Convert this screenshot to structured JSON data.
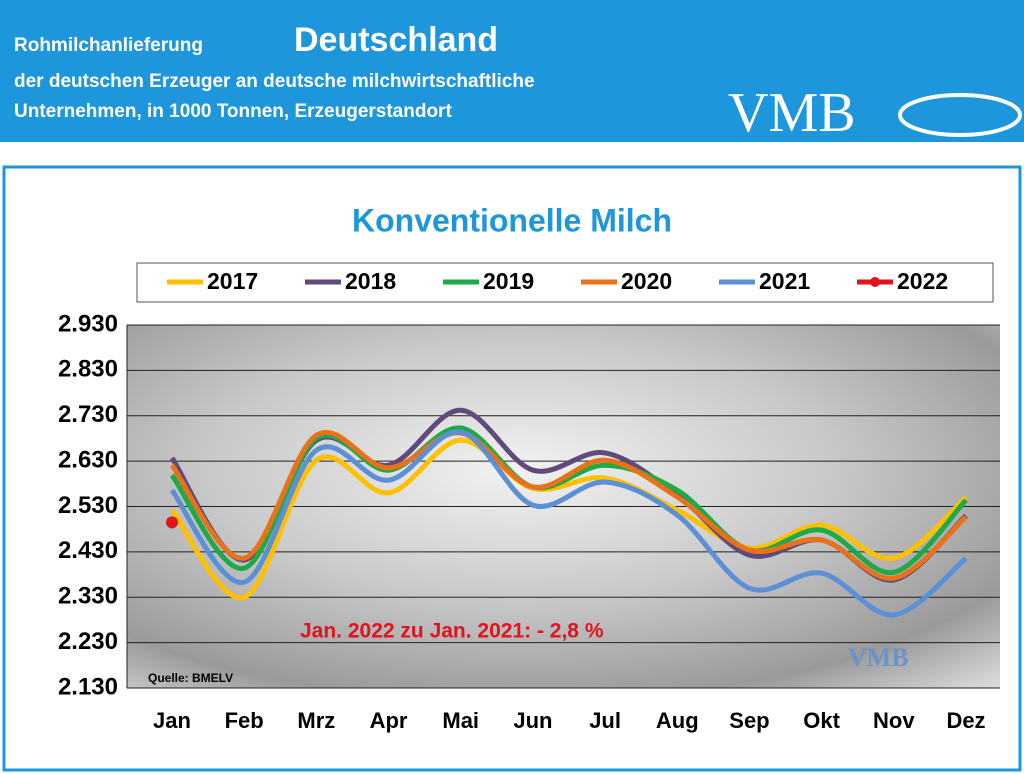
{
  "header": {
    "label": "Rohmilchanlieferung",
    "title": "Deutschland",
    "line1": "der deutschen Erzeuger an deutsche milchwirtschaftliche",
    "line2": "Unternehmen, in 1000 Tonnen, Erzeugerstandort",
    "logo": "VMB"
  },
  "chart_data": {
    "type": "line",
    "title": "Konventionelle Milch",
    "categories": [
      "Jan",
      "Feb",
      "Mrz",
      "Apr",
      "Mai",
      "Jun",
      "Jul",
      "Aug",
      "Sep",
      "Okt",
      "Nov",
      "Dez"
    ],
    "series": [
      {
        "name": "2017",
        "color": "#ffc000",
        "values": [
          2522,
          2330,
          2632,
          2560,
          2676,
          2570,
          2593,
          2522,
          2438,
          2489,
          2416,
          2550
        ]
      },
      {
        "name": "2018",
        "color": "#604a7b",
        "values": [
          2637,
          2412,
          2676,
          2621,
          2742,
          2610,
          2648,
          2555,
          2423,
          2456,
          2368,
          2510
        ]
      },
      {
        "name": "2019",
        "color": "#1faa4a",
        "values": [
          2599,
          2394,
          2680,
          2610,
          2703,
          2573,
          2621,
          2566,
          2434,
          2478,
          2385,
          2544
        ]
      },
      {
        "name": "2020",
        "color": "#e8711a",
        "values": [
          2621,
          2416,
          2687,
          2615,
          2692,
          2573,
          2632,
          2551,
          2434,
          2456,
          2372,
          2507
        ]
      },
      {
        "name": "2021",
        "color": "#5b8fd6",
        "values": [
          2566,
          2363,
          2654,
          2588,
          2694,
          2533,
          2584,
          2511,
          2350,
          2383,
          2291,
          2416
        ]
      },
      {
        "name": "2022",
        "color": "#e0141e",
        "values": [
          2495,
          null,
          null,
          null,
          null,
          null,
          null,
          null,
          null,
          null,
          null,
          null
        ]
      }
    ],
    "ylim": [
      2130,
      2930
    ],
    "yticks": [
      {
        "value": 2130,
        "label": "2.130"
      },
      {
        "value": 2230,
        "label": "2.230"
      },
      {
        "value": 2330,
        "label": "2.330"
      },
      {
        "value": 2430,
        "label": "2.430"
      },
      {
        "value": 2530,
        "label": "2.530"
      },
      {
        "value": 2630,
        "label": "2.630"
      },
      {
        "value": 2730,
        "label": "2.730"
      },
      {
        "value": 2830,
        "label": "2.830"
      },
      {
        "value": 2930,
        "label": "2.930"
      }
    ],
    "grid": true,
    "annotation": "Jan. 2022 zu Jan. 2021: - 2,8 %",
    "source": "Quelle: BMELV"
  }
}
